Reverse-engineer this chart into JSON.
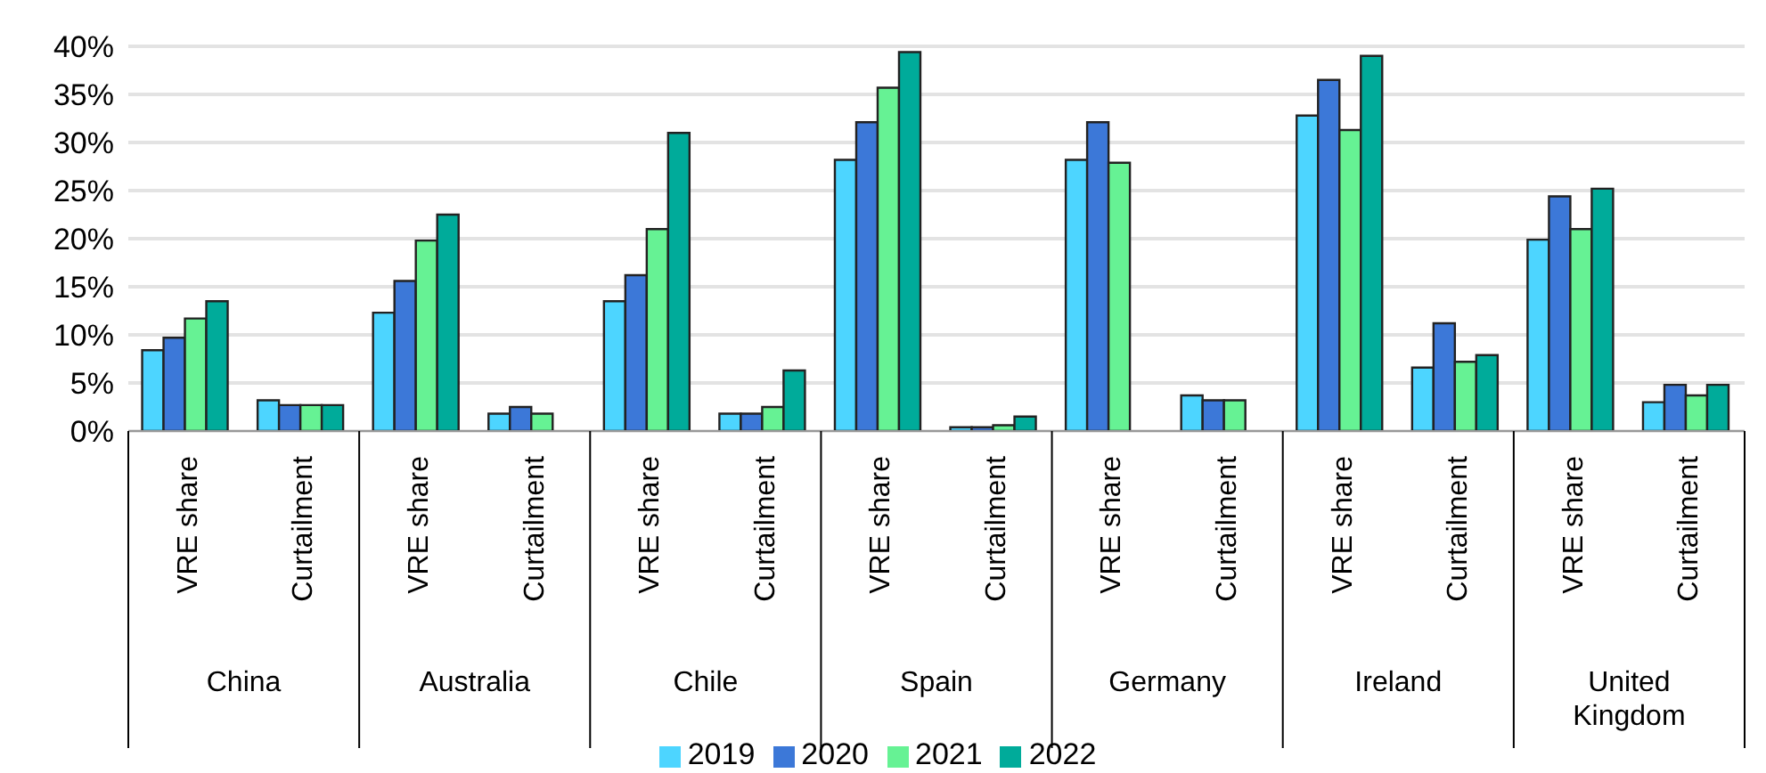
{
  "chart_data": {
    "type": "bar",
    "categories": [
      "VRE share",
      "Curtailment",
      "VRE share",
      "Curtailment",
      "VRE share",
      "Curtailment",
      "VRE share",
      "Curtailment",
      "VRE share",
      "Curtailment",
      "VRE share",
      "Curtailment",
      "VRE share",
      "Curtailment"
    ],
    "annotations": [
      "China",
      "Australia",
      "Chile",
      "Spain",
      "Germany",
      "Ireland",
      "United Kingdom"
    ],
    "series": [
      {
        "name": "2019",
        "color": "#4dd5ff",
        "values": [
          8.4,
          3.2,
          12.3,
          1.8,
          13.5,
          1.8,
          28.2,
          0.4,
          28.2,
          3.7,
          32.8,
          6.6,
          19.9,
          3.0
        ]
      },
      {
        "name": "2020",
        "color": "#3c78d8",
        "values": [
          9.7,
          2.7,
          15.6,
          2.5,
          16.2,
          1.8,
          32.1,
          0.4,
          32.1,
          3.2,
          36.5,
          11.2,
          24.4,
          4.8
        ]
      },
      {
        "name": "2021",
        "color": "#66f294",
        "values": [
          11.7,
          2.7,
          19.8,
          1.8,
          21.0,
          2.5,
          35.7,
          0.6,
          27.9,
          3.2,
          31.3,
          7.2,
          21.0,
          3.7
        ]
      },
      {
        "name": "2022",
        "color": "#00ab9a",
        "values": [
          13.5,
          2.7,
          22.5,
          null,
          31.0,
          6.3,
          39.4,
          1.5,
          null,
          null,
          39.0,
          7.9,
          25.2,
          4.8
        ]
      }
    ],
    "ylim": [
      0,
      40
    ],
    "yticks": [
      {
        "value": 0,
        "label": "0%"
      },
      {
        "value": 5,
        "label": "5%"
      },
      {
        "value": 10,
        "label": "10%"
      },
      {
        "value": 15,
        "label": "15%"
      },
      {
        "value": 20,
        "label": "20%"
      },
      {
        "value": 25,
        "label": "25%"
      },
      {
        "value": 30,
        "label": "30%"
      },
      {
        "value": 35,
        "label": "35%"
      },
      {
        "value": 40,
        "label": "40%"
      }
    ],
    "grid": "y",
    "legend": "bottom"
  }
}
